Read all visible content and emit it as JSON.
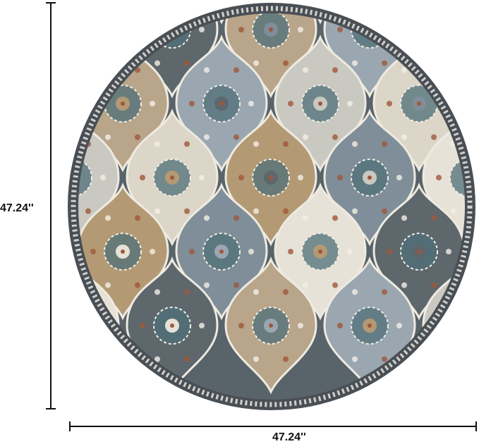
{
  "dimensions": {
    "height_label": "47.24''",
    "width_label": "47.24''"
  },
  "rug": {
    "shape": "round",
    "colors": {
      "border": "#4a4f55",
      "border_light": "#cfd0cc",
      "field_dark": "#59636a",
      "tile_palette": [
        "#e6e2d8",
        "#9aa7b1",
        "#b39a74",
        "#5d676c",
        "#c9c9c2",
        "#7f8e98",
        "#b8a58a",
        "#dcd6c8"
      ],
      "accent_rust": "#a0573a",
      "accent_teal": "#4f6f78"
    }
  }
}
